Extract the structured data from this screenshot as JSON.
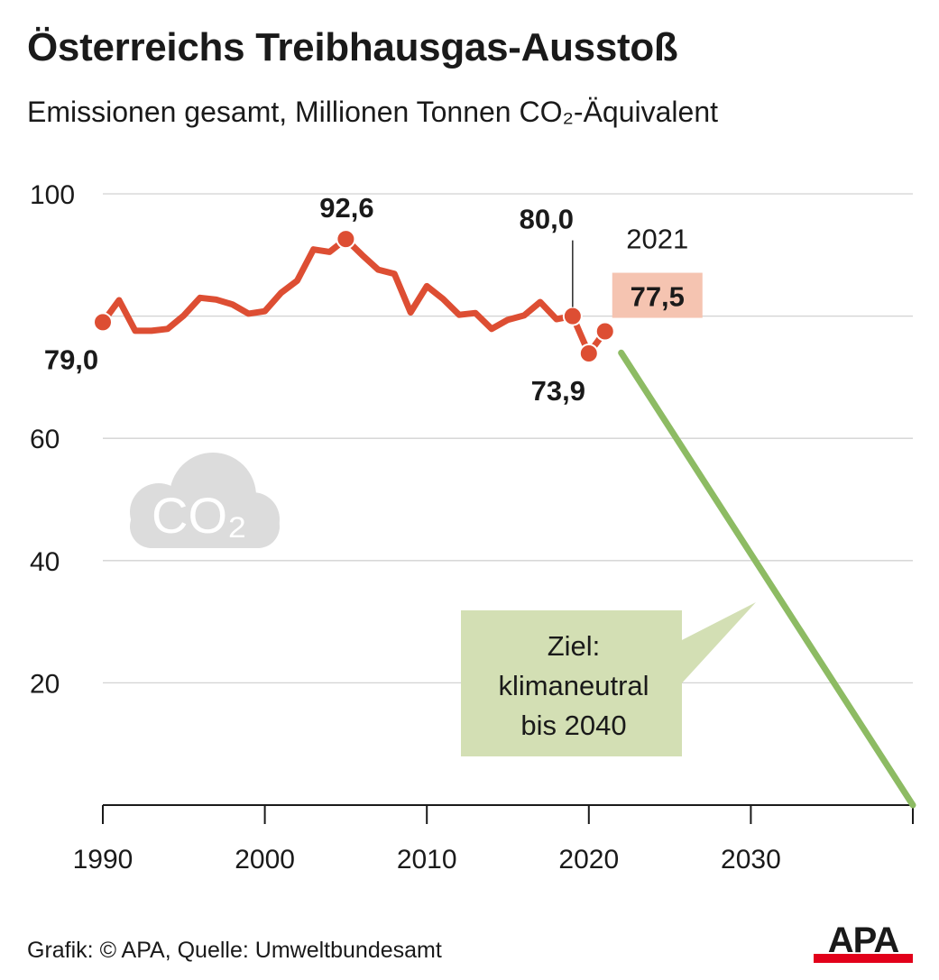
{
  "header": {
    "title": "Österreichs Treibhausgas-Ausstoß",
    "subtitle": "Emissionen gesamt, Millionen Tonnen CO₂-Äquivalent"
  },
  "chart_data": {
    "type": "line",
    "title": "Österreichs Treibhausgas-Ausstoß",
    "subtitle": "Emissionen gesamt, Millionen Tonnen CO₂-Äquivalent",
    "xlim": [
      1990,
      2040
    ],
    "ylim": [
      0,
      100
    ],
    "x_ticks": [
      "1990",
      "2000",
      "2010",
      "2020",
      "2030"
    ],
    "y_ticks": [
      "100",
      "60",
      "40",
      "20"
    ],
    "grid": true,
    "series": [
      {
        "color": "#dd4e33",
        "x": [
          1990,
          1991,
          1992,
          1993,
          1994,
          1995,
          1996,
          1997,
          1998,
          1999,
          2000,
          2001,
          2002,
          2003,
          2004,
          2005,
          2006,
          2007,
          2008,
          2009,
          2010,
          2011,
          2012,
          2013,
          2014,
          2015,
          2016,
          2017,
          2018,
          2019,
          2020,
          2021
        ],
        "y": [
          79.0,
          82.6,
          77.6,
          77.6,
          77.9,
          80.1,
          83.0,
          82.7,
          81.9,
          80.4,
          80.8,
          83.8,
          85.8,
          90.9,
          90.5,
          92.6,
          90.0,
          87.6,
          86.9,
          80.6,
          84.9,
          82.8,
          80.2,
          80.5,
          77.9,
          79.4,
          80.1,
          82.3,
          79.5,
          80.0,
          73.9,
          77.5
        ]
      },
      {
        "color": "#8dbb63",
        "x": [
          2022,
          2040
        ],
        "y": [
          74.0,
          0
        ]
      }
    ],
    "data_labels": [
      {
        "text": "79,0",
        "x": 1990,
        "y": 79.0,
        "bold": true
      },
      {
        "text": "92,6",
        "x": 2005,
        "y": 92.6,
        "bold": true
      },
      {
        "text": "80,0",
        "x": 2019,
        "y": 80.0,
        "bold": true
      },
      {
        "text": "73,9",
        "x": 2020,
        "y": 73.9,
        "bold": true
      },
      {
        "text": "2021",
        "x": 2021,
        "y": 77.5,
        "bold": false
      },
      {
        "text": "77,5",
        "x": 2021,
        "y": 77.5,
        "bold": true,
        "highlight": "#f5c4b1"
      }
    ],
    "annotation": {
      "lines": [
        "Ziel:",
        "klimaneutral",
        "bis 2040"
      ],
      "background": "#d3dfb4"
    },
    "icon": "co2-cloud-icon",
    "icon_text": "CO₂"
  },
  "footer": {
    "credit": "Grafik: © APA, Quelle: Umweltbundesamt",
    "logo_text": "APA"
  },
  "colors": {
    "line": "#dd4e33",
    "target": "#8dbb63",
    "highlight": "#f5c4b1",
    "annotation_bg": "#d3dfb4",
    "grid": "#d2d2d2",
    "cloud": "#dcdcdc"
  }
}
